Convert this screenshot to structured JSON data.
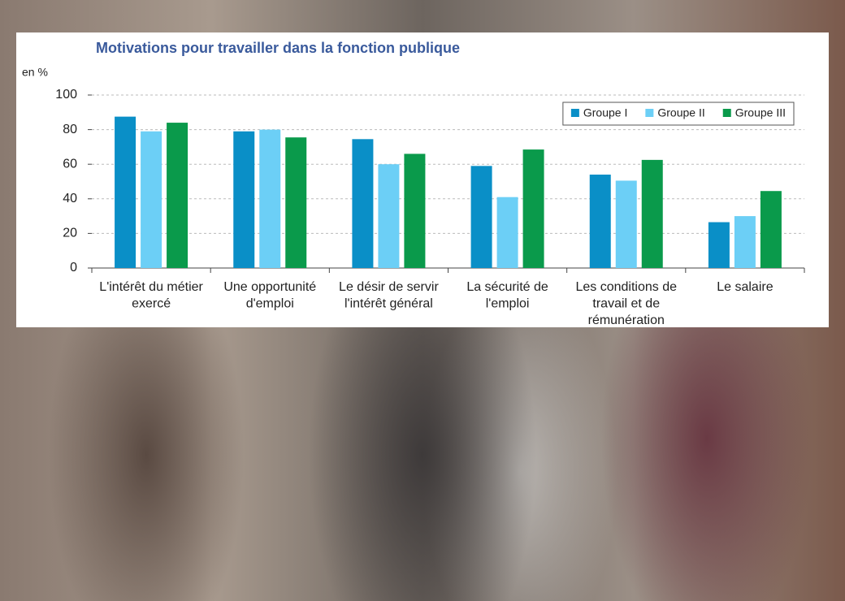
{
  "chart_data": {
    "type": "bar",
    "title": "Motivations pour travailler dans la fonction publique",
    "y_label": "en %",
    "categories": [
      "L'intérêt du métier exercé",
      "Une opportunité d'emploi",
      "Le désir de servir l'intérêt général",
      "La sécurité de l'emploi",
      "Les conditions de travail et de rémunération",
      "Le salaire"
    ],
    "series": [
      {
        "name": "Groupe I",
        "color": "#0a8fc7",
        "values": [
          87.5,
          79,
          74.5,
          59,
          54,
          26.5
        ]
      },
      {
        "name": "Groupe II",
        "color": "#6ccff6",
        "values": [
          79,
          80,
          60,
          41,
          50.5,
          30
        ]
      },
      {
        "name": "Groupe III",
        "color": "#0a9a4b",
        "values": [
          84,
          75.5,
          66,
          68.5,
          62.5,
          44.5
        ]
      }
    ],
    "ylim": [
      0,
      100
    ],
    "yticks": [
      0,
      20,
      40,
      60,
      80,
      100
    ],
    "grid": true,
    "legend": "top-right"
  }
}
